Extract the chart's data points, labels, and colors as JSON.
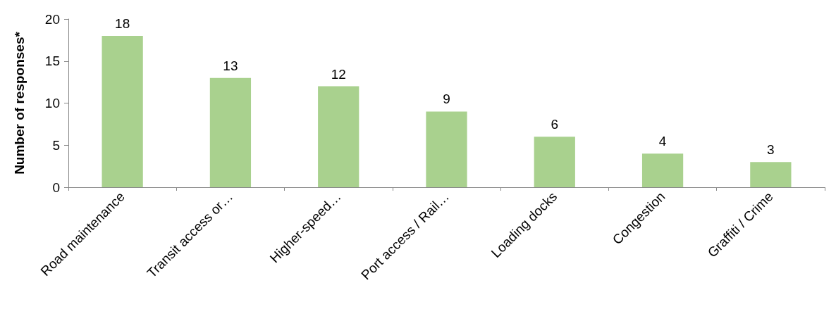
{
  "chart_data": {
    "type": "bar",
    "ylabel": "Number of responses*",
    "categories": [
      "Road maintenance",
      "Transit access or…",
      "Higher-speed…",
      "Port access / Rail…",
      "Loading docks",
      "Congestion",
      "Graffiti / Crime"
    ],
    "values": [
      18,
      13,
      12,
      9,
      6,
      4,
      3
    ],
    "color": "#a9d18e",
    "ylim": [
      0,
      20
    ],
    "yticks": [
      0,
      5,
      10,
      15,
      20
    ],
    "grid": false,
    "data_labels": true
  }
}
